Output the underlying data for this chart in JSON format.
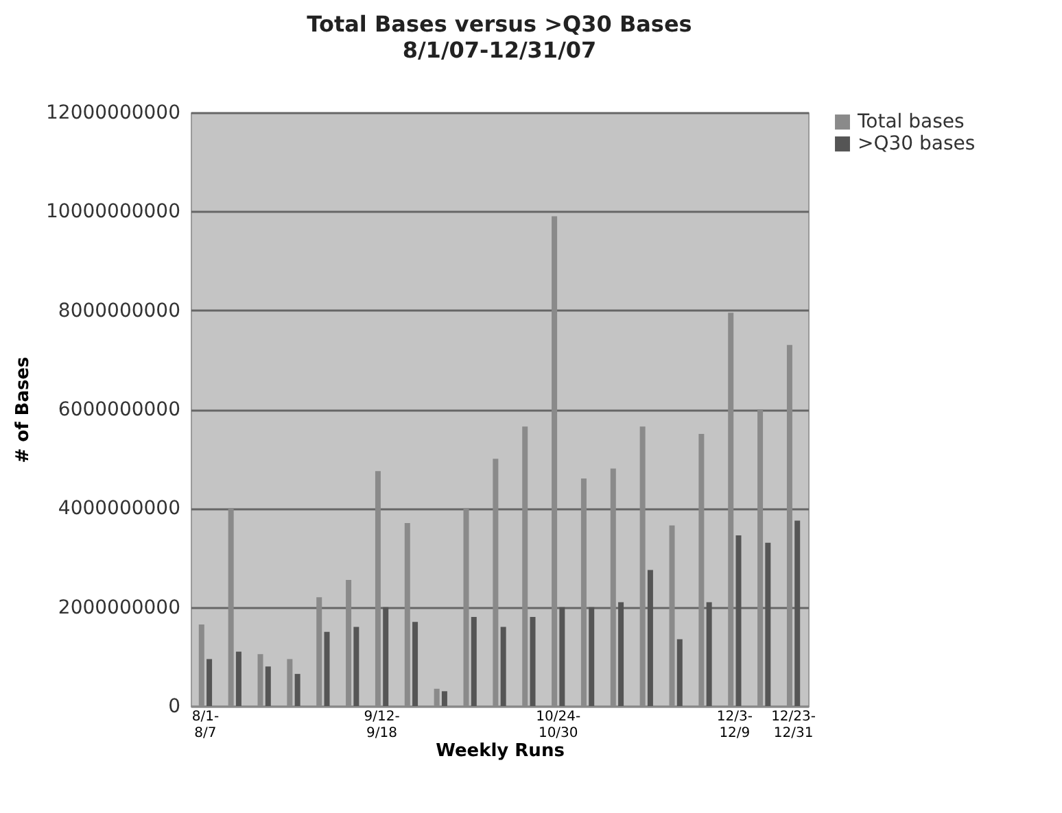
{
  "chart_data": {
    "type": "bar",
    "title": "Total Bases versus >Q30 Bases",
    "subtitle": "8/1/07-12/31/07",
    "xlabel": "Weekly Runs",
    "ylabel": "# of Bases",
    "categories": [
      "8/1-8/7",
      null,
      null,
      null,
      null,
      null,
      "9/12-9/18",
      null,
      null,
      null,
      null,
      null,
      "10/24-10/30",
      null,
      null,
      null,
      null,
      null,
      "12/3-12/9",
      null,
      "12/23-12/31"
    ],
    "series": [
      {
        "name": "Total bases",
        "color": "#8a8a8a",
        "values": [
          1650000000,
          4000000000,
          1050000000,
          950000000,
          2200000000,
          2550000000,
          4750000000,
          3700000000,
          350000000,
          4000000000,
          5000000000,
          5650000000,
          9900000000,
          4600000000,
          4800000000,
          5650000000,
          3650000000,
          5500000000,
          7950000000,
          6000000000,
          7300000000
        ]
      },
      {
        "name": ">Q30 bases",
        "color": "#555555",
        "values": [
          950000000,
          1100000000,
          800000000,
          650000000,
          1500000000,
          1600000000,
          2000000000,
          1700000000,
          300000000,
          1800000000,
          1600000000,
          1800000000,
          2000000000,
          2000000000,
          2100000000,
          2750000000,
          1350000000,
          2100000000,
          3450000000,
          3300000000,
          3750000000
        ]
      }
    ],
    "ylim": [
      0,
      12000000000
    ],
    "yticks": [
      0,
      2000000000,
      4000000000,
      6000000000,
      8000000000,
      10000000000,
      12000000000
    ],
    "grid": "y",
    "legend": "right"
  }
}
